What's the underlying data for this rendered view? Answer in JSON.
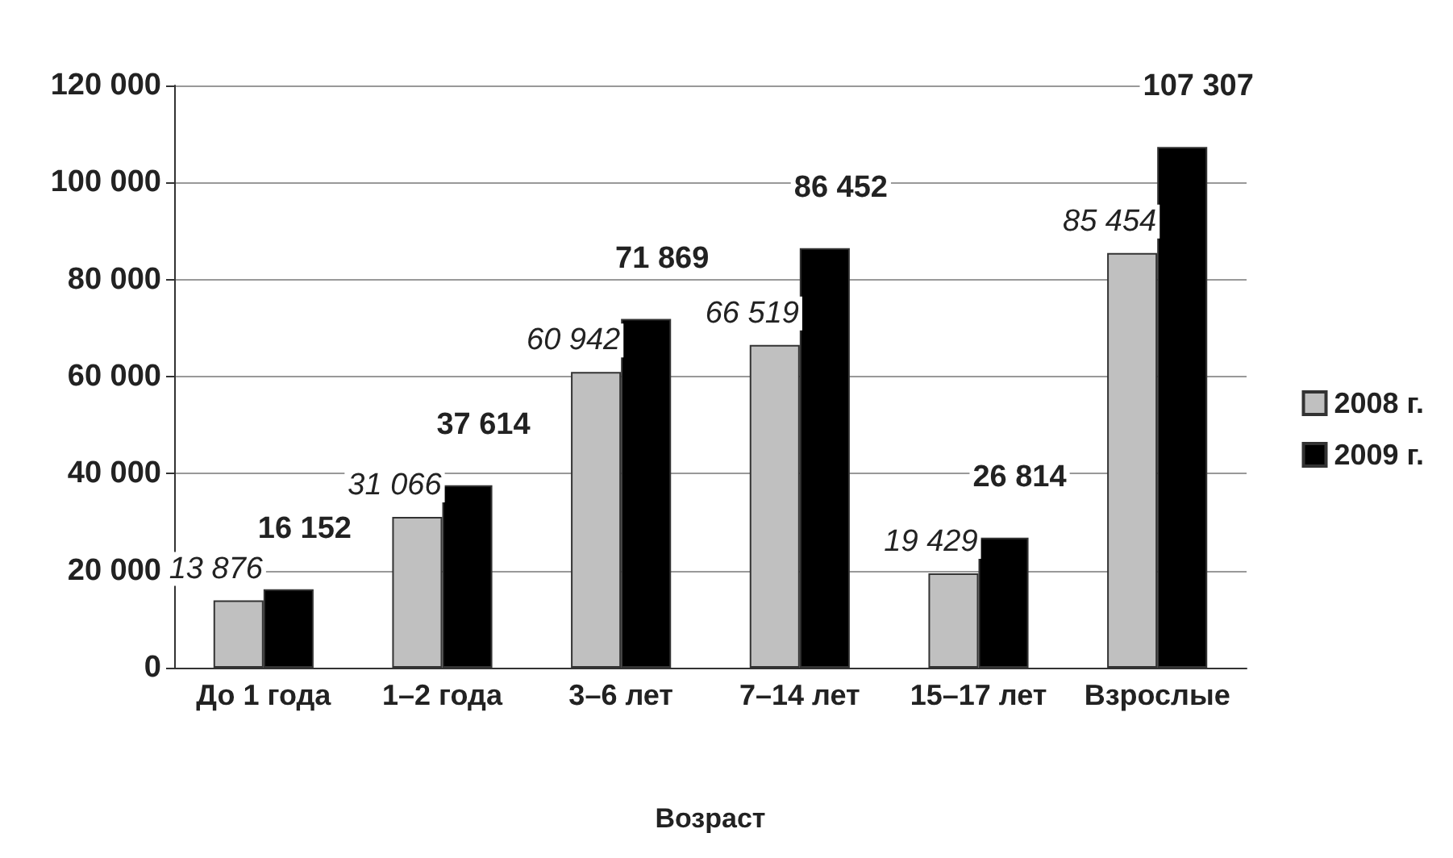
{
  "chart_data": {
    "type": "bar",
    "xlabel": "Возраст",
    "categories": [
      "До 1 года",
      "1–2 года",
      "3–6 лет",
      "7–14 лет",
      "15–17 лет",
      "Взрослые"
    ],
    "series": [
      {
        "name": "2008 г.",
        "color": "#c0c0c0",
        "values": [
          13876,
          31066,
          60942,
          66519,
          19429,
          85454
        ],
        "value_labels": [
          "13 876",
          "31 066",
          "60 942",
          "66 519",
          "19 429",
          "85 454"
        ]
      },
      {
        "name": "2009 г.",
        "color": "#000000",
        "values": [
          16152,
          37614,
          71869,
          86452,
          26814,
          107307
        ],
        "value_labels": [
          "16 152",
          "37 614",
          "71 869",
          "86 452",
          "26 814",
          "107 307"
        ]
      }
    ],
    "ylim": [
      0,
      120000
    ],
    "yticks": [
      0,
      {
        "value": 20000,
        "label": "20 000"
      },
      {
        "value": 40000,
        "label": "40 000"
      },
      {
        "value": 60000,
        "label": "60 000"
      },
      {
        "value": 80000,
        "label": "80 000"
      },
      {
        "value": 100000,
        "label": "100 000"
      },
      {
        "value": 120000,
        "label": "120 000"
      }
    ],
    "grid": "y",
    "legend": "right"
  }
}
